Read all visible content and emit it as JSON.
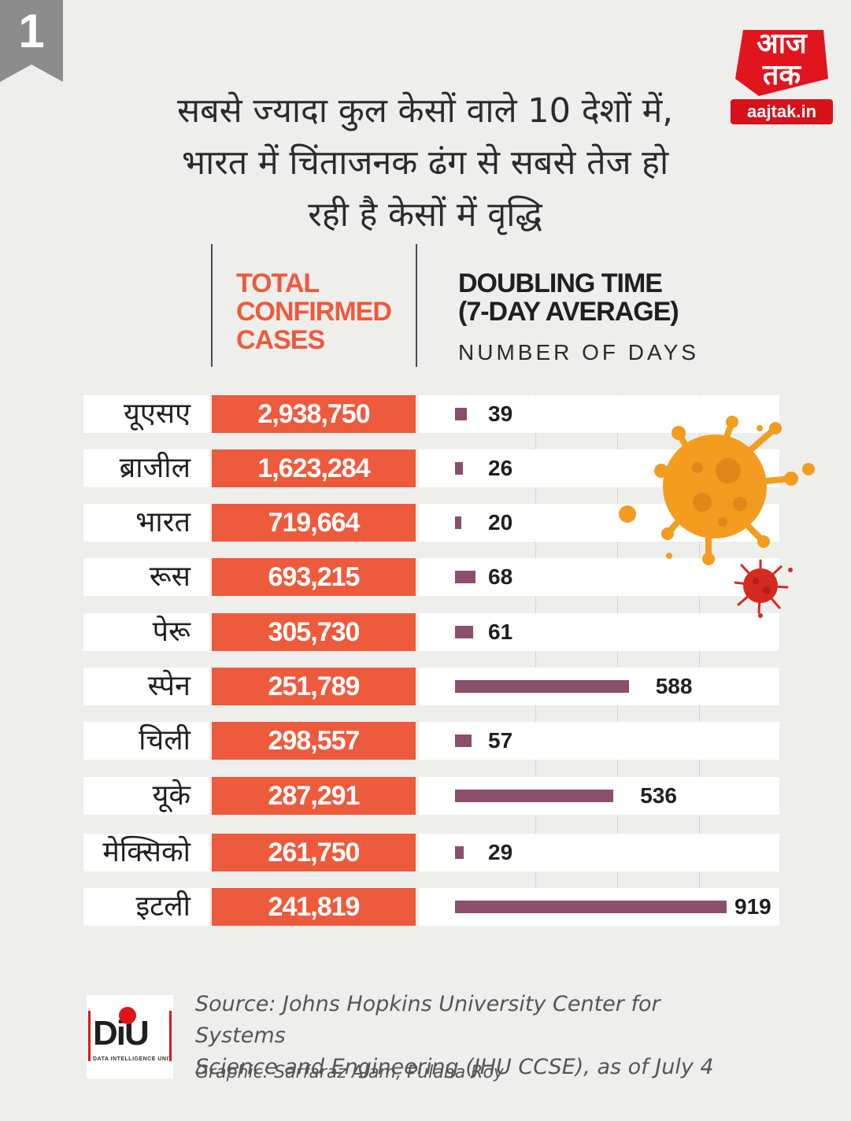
{
  "badge": {
    "number": "1"
  },
  "logo": {
    "script_text": "आज तक",
    "domain": "aajtak.in"
  },
  "title": {
    "line1": "सबसे ज्यादा कुल केसों वाले 10 देशों में,",
    "line2": "भारत में चिंताजनक ढंग से सबसे तेज हो",
    "line3": "रही है केसों में वृद्धि"
  },
  "headers": {
    "total_line1": "TOTAL",
    "total_line2": "CONFIRMED",
    "total_line3": "CASES",
    "doubling_line1": "DOUBLING TIME",
    "doubling_line2": "(7-DAY AVERAGE)",
    "doubling_sub": "NUMBER OF DAYS"
  },
  "colors": {
    "total": "#ee5a3c",
    "bar": "#8a4f6a",
    "virus_orange": "#f39c1f",
    "virus_red": "#d42a22"
  },
  "chart_data": {
    "type": "bar",
    "categories": [
      "यूएसए",
      "ब्राजील",
      "भारत",
      "रूस",
      "पेरू",
      "स्पेन",
      "चिली",
      "यूके",
      "मेक्सिको",
      "इटली"
    ],
    "total_confirmed_cases": [
      "2,938,750",
      "1,623,284",
      "719,664",
      "693,215",
      "305,730",
      "251,789",
      "298,557",
      "287,291",
      "261,750",
      "241,819"
    ],
    "series": [
      {
        "name": "DOUBLING TIME (7-DAY AVERAGE)",
        "values": [
          39,
          26,
          20,
          68,
          61,
          588,
          57,
          536,
          29,
          919
        ]
      }
    ],
    "xlabel": "NUMBER OF DAYS",
    "xlim": [
      0,
      919
    ]
  },
  "diu": {
    "logo_text": "DiU",
    "logo_sub": "DATA INTELLIGENCE UNIT"
  },
  "source": {
    "line1": "Source: Johns Hopkins University Center for Systems",
    "line2": "Science and Engineering (JHU CCSE), as of July 4"
  },
  "credit": "Graphic: Sarfaraz Alam, Pulaha Roy"
}
